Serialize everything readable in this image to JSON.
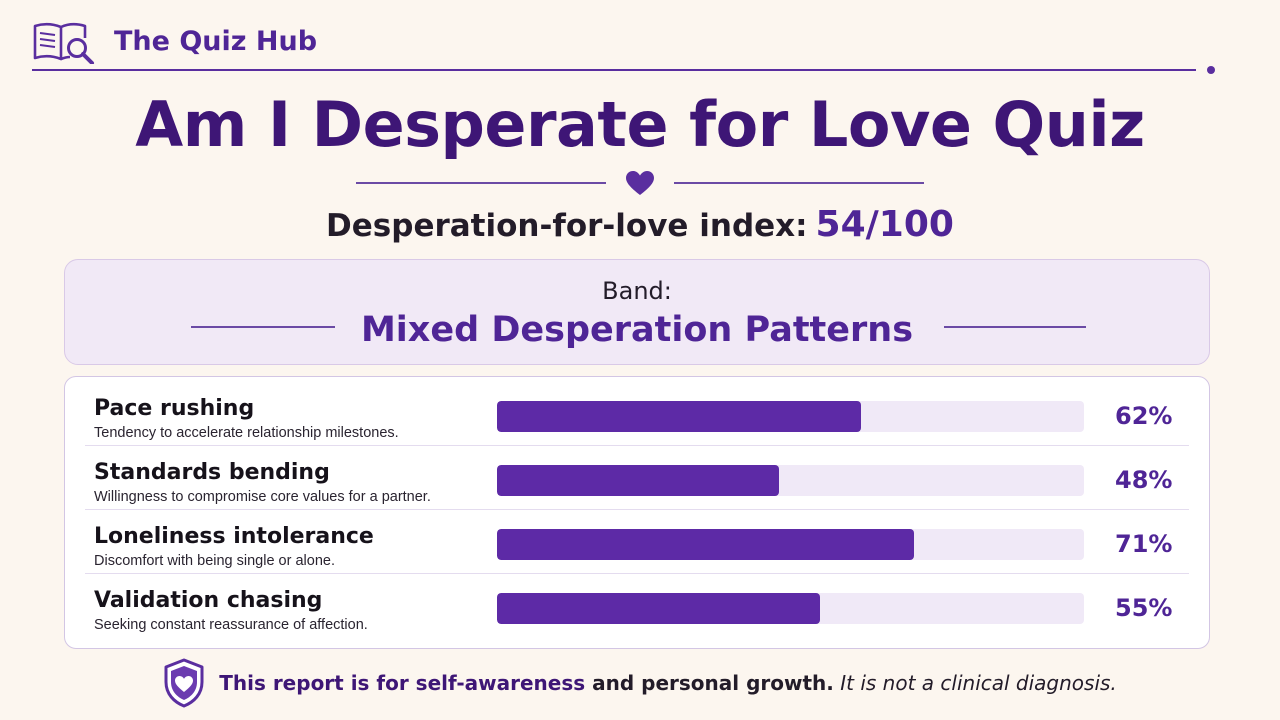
{
  "header": {
    "brand": "The Quiz Hub",
    "logo_icon": "book-magnifier-icon"
  },
  "title": "Am I Desperate for Love Quiz",
  "divider_icon": "heart-icon",
  "index": {
    "label": "Desperation-for-love index:",
    "value": "54/100",
    "score": 54,
    "max": 100
  },
  "band": {
    "label": "Band:",
    "value": "Mixed Desperation Patterns"
  },
  "metrics": [
    {
      "name": "Pace rushing",
      "description": "Tendency to accelerate relationship milestones.",
      "percent": 62,
      "percent_label": "62%"
    },
    {
      "name": "Standards bending",
      "description": "Willingness to compromise core values for a partner.",
      "percent": 48,
      "percent_label": "48%"
    },
    {
      "name": "Loneliness intolerance",
      "description": "Discomfort with being single or alone.",
      "percent": 71,
      "percent_label": "71%"
    },
    {
      "name": "Validation chasing",
      "description": "Seeking constant reassurance of affection.",
      "percent": 55,
      "percent_label": "55%"
    }
  ],
  "footer": {
    "icon": "shield-heart-icon",
    "part1": "This report is for self-awareness",
    "part2": " and personal growth.",
    "part3": " It is not a clinical diagnosis."
  },
  "colors": {
    "accent": "#4f2596",
    "bar_fill": "#5d2aa6",
    "bar_track": "#f0e9f7",
    "background": "#fcf6ef"
  }
}
